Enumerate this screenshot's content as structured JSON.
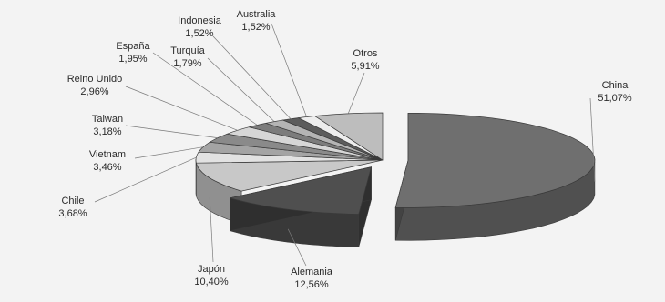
{
  "chart_data": {
    "type": "pie",
    "title": "",
    "slices": [
      {
        "name": "China",
        "value_label": "51,07%",
        "value": 51.07,
        "color": "#6f6f6f",
        "exploded": true
      },
      {
        "name": "Alemania",
        "value_label": "12,56%",
        "value": 12.56,
        "color": "#4f4f4f",
        "exploded": true
      },
      {
        "name": "Japón",
        "value_label": "10,40%",
        "value": 10.4,
        "color": "#c8c8c8",
        "exploded": false
      },
      {
        "name": "Chile",
        "value_label": "3,68%",
        "value": 3.68,
        "color": "#e2e2e2",
        "exploded": false
      },
      {
        "name": "Vietnam",
        "value_label": "3,46%",
        "value": 3.46,
        "color": "#a4a4a4",
        "exploded": false
      },
      {
        "name": "Taiwan",
        "value_label": "3,18%",
        "value": 3.18,
        "color": "#8a8a8a",
        "exploded": false
      },
      {
        "name": "Reino Unido",
        "value_label": "2,96%",
        "value": 2.96,
        "color": "#d6d6d6",
        "exploded": false
      },
      {
        "name": "España",
        "value_label": "1,95%",
        "value": 1.95,
        "color": "#7c7c7c",
        "exploded": false
      },
      {
        "name": "Turquía",
        "value_label": "1,79%",
        "value": 1.79,
        "color": "#b4b4b4",
        "exploded": false
      },
      {
        "name": "Indonesia",
        "value_label": "1,52%",
        "value": 1.52,
        "color": "#5c5c5c",
        "exploded": false
      },
      {
        "name": "Australia",
        "value_label": "1,52%",
        "value": 1.52,
        "color": "#ededed",
        "exploded": false
      },
      {
        "name": "Otros",
        "value_label": "5,91%",
        "value": 5.91,
        "color": "#bdbdbd",
        "exploded": false
      }
    ],
    "legend": "none",
    "style": "3d-exploded"
  }
}
